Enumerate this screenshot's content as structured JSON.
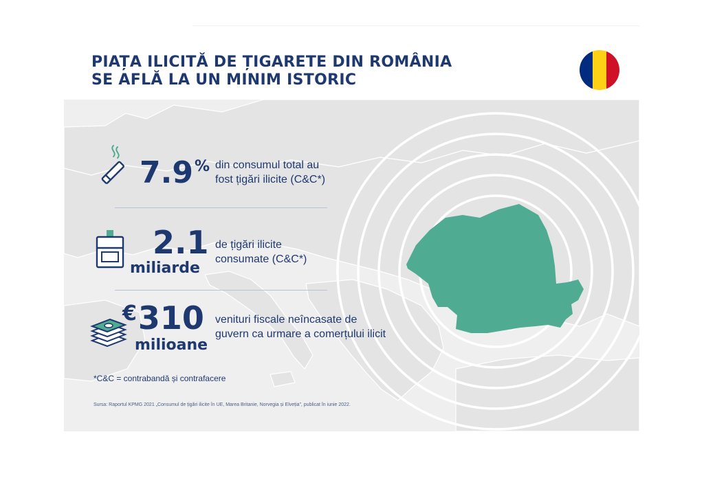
{
  "title": {
    "line1": "PIAȚA ILICITĂ DE ȚIGARETE DIN ROMÂNIA",
    "line2": "SE AFLĂ LA UN MINIM ISTORIC"
  },
  "flag": {
    "blue": "#002b7f",
    "yellow": "#fcd116",
    "red": "#ce1126"
  },
  "colors": {
    "navy": "#1e3870",
    "romania_fill": "#4fab92",
    "panel_bg": "#efefef",
    "land": "#e4e4e4"
  },
  "stats": [
    {
      "icon": "cigarette-icon",
      "value": "7.9",
      "suffix": "%",
      "desc_line1": "din consumul total au",
      "desc_line2": "fost țigări ilicite (C&C*)"
    },
    {
      "icon": "cigarette-pack-icon",
      "value": "2.1",
      "unit": "miliarde",
      "desc_line1": "de țigări ilicite",
      "desc_line2": "consumate (C&C*)"
    },
    {
      "icon": "money-stack-icon",
      "prefix": "€",
      "value": "310",
      "unit": "milioane",
      "desc_line1": "venituri fiscale neîncasate de",
      "desc_line2": "guvern ca urmare a comerțului ilicit"
    }
  ],
  "footnote": "*C&C = contrabandă și contrafacere",
  "source": "Sursa: Raportul KPMG 2021 „Consumul de țigări ilicite în UE, Marea Britanie, Norvegia și Elveția”, publicat în iunie 2022."
}
